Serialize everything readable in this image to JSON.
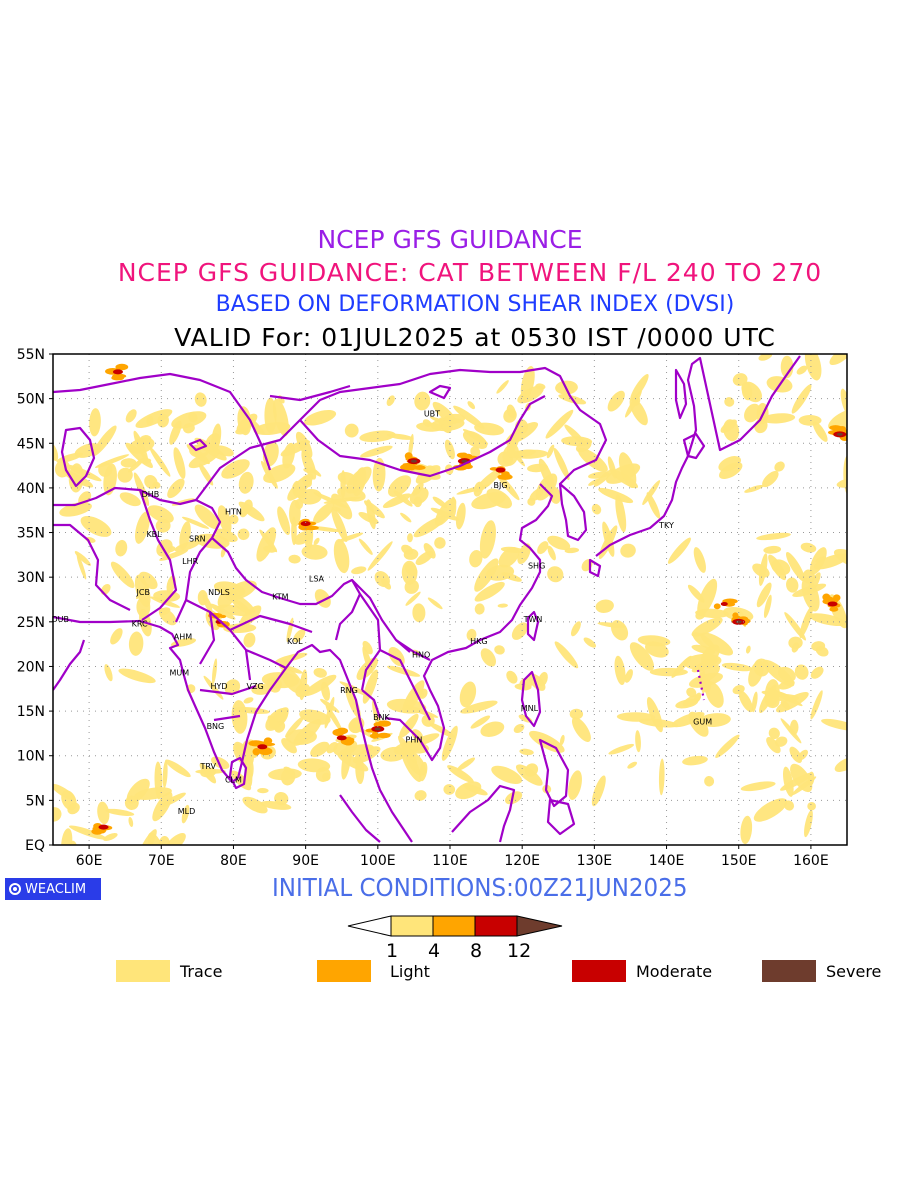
{
  "titles": {
    "line1": "NCEP GFS GUIDANCE",
    "line2": "NCEP GFS GUIDANCE: CAT BETWEEN F/L 240 TO 270",
    "line3": "BASED ON DEFORMATION SHEAR INDEX (DVSI)",
    "line4": "VALID For: 01JUL2025 at 0530 IST /0000 UTC"
  },
  "logo_text": "WEACLIM",
  "initial_conditions": "INITIAL CONDITIONS:00Z21JUN2025",
  "map": {
    "lon_range": [
      55,
      165
    ],
    "lat_range": [
      0,
      55
    ],
    "lon_labels": [
      "60E",
      "70E",
      "80E",
      "90E",
      "100E",
      "110E",
      "120E",
      "130E",
      "140E",
      "150E",
      "160E"
    ],
    "lat_labels": [
      "EQ",
      "5N",
      "10N",
      "15N",
      "20N",
      "25N",
      "30N",
      "35N",
      "40N",
      "45N",
      "50N",
      "55N"
    ],
    "grid": "dotted",
    "stations": [
      {
        "code": "UBT",
        "lon": 107.5,
        "lat": 48
      },
      {
        "code": "BJG",
        "lon": 117,
        "lat": 40
      },
      {
        "code": "DHB",
        "lon": 68.5,
        "lat": 39
      },
      {
        "code": "HTN",
        "lon": 80,
        "lat": 37
      },
      {
        "code": "KBL",
        "lon": 69,
        "lat": 34.5
      },
      {
        "code": "SRN",
        "lon": 75,
        "lat": 34
      },
      {
        "code": "LHR",
        "lon": 74,
        "lat": 31.5
      },
      {
        "code": "TKY",
        "lon": 140,
        "lat": 35.5
      },
      {
        "code": "SHG",
        "lon": 122,
        "lat": 31
      },
      {
        "code": "LSA",
        "lon": 91.5,
        "lat": 29.5
      },
      {
        "code": "JCB",
        "lon": 67.5,
        "lat": 28
      },
      {
        "code": "NDLS",
        "lon": 78,
        "lat": 28
      },
      {
        "code": "KTM",
        "lon": 86.5,
        "lat": 27.5
      },
      {
        "code": "DUB",
        "lon": 56,
        "lat": 25
      },
      {
        "code": "KRC",
        "lon": 67,
        "lat": 24.5
      },
      {
        "code": "TWN",
        "lon": 121.5,
        "lat": 25
      },
      {
        "code": "AHM",
        "lon": 73,
        "lat": 23
      },
      {
        "code": "KOL",
        "lon": 88.5,
        "lat": 22.5
      },
      {
        "code": "HKG",
        "lon": 114,
        "lat": 22.5
      },
      {
        "code": "HNO",
        "lon": 106,
        "lat": 21
      },
      {
        "code": "MUM",
        "lon": 72.5,
        "lat": 19
      },
      {
        "code": "HYD",
        "lon": 78,
        "lat": 17.5
      },
      {
        "code": "VZG",
        "lon": 83,
        "lat": 17.5
      },
      {
        "code": "RNG",
        "lon": 96,
        "lat": 17
      },
      {
        "code": "BNK",
        "lon": 100.5,
        "lat": 14
      },
      {
        "code": "MNL",
        "lon": 121,
        "lat": 15
      },
      {
        "code": "GUM",
        "lon": 145,
        "lat": 13.5
      },
      {
        "code": "PHN",
        "lon": 105,
        "lat": 11.5
      },
      {
        "code": "BNG",
        "lon": 77.5,
        "lat": 13
      },
      {
        "code": "TRV",
        "lon": 76.5,
        "lat": 8.5
      },
      {
        "code": "CLM",
        "lon": 80,
        "lat": 7
      },
      {
        "code": "MLD",
        "lon": 73.5,
        "lat": 3.5
      }
    ]
  },
  "colorbar": {
    "levels": [
      "1",
      "4",
      "8",
      "12"
    ],
    "colors": [
      "#ffffff",
      "#ffe57a",
      "#ffa500",
      "#c80000",
      "#6e3c2d"
    ]
  },
  "legend": [
    {
      "label": "Trace",
      "color": "#ffe57a"
    },
    {
      "label": "Light",
      "color": "#ffa500"
    },
    {
      "label": "Moderate",
      "color": "#c80000"
    },
    {
      "label": "Severe",
      "color": "#6e3c2d"
    }
  ],
  "colors": {
    "boundary": "#a000c8",
    "title1": "#9a1ee6",
    "title2": "#f0147c",
    "title3": "#1e3cff",
    "initial": "#4a6ee8"
  }
}
